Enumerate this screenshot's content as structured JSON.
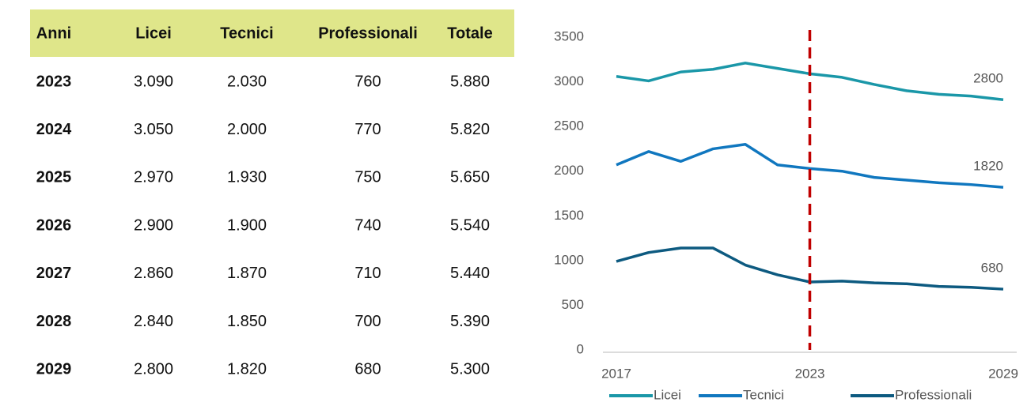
{
  "table": {
    "columns": [
      "Anni",
      "Licei",
      "Tecnici",
      "Professionali",
      "Totale"
    ],
    "rows": [
      [
        "2023",
        "3.090",
        "2.030",
        "760",
        "5.880"
      ],
      [
        "2024",
        "3.050",
        "2.000",
        "770",
        "5.820"
      ],
      [
        "2025",
        "2.970",
        "1.930",
        "750",
        "5.650"
      ],
      [
        "2026",
        "2.900",
        "1.900",
        "740",
        "5.540"
      ],
      [
        "2027",
        "2.860",
        "1.870",
        "710",
        "5.440"
      ],
      [
        "2028",
        "2.840",
        "1.850",
        "700",
        "5.390"
      ],
      [
        "2029",
        "2.800",
        "1.820",
        "680",
        "5.300"
      ]
    ]
  },
  "chart_data": {
    "type": "line",
    "x": [
      2017,
      2018,
      2019,
      2020,
      2021,
      2022,
      2023,
      2024,
      2025,
      2026,
      2027,
      2028,
      2029
    ],
    "series": [
      {
        "name": "Licei",
        "color": "#1a97a8",
        "values": [
          3060,
          3010,
          3110,
          3140,
          3210,
          3150,
          3090,
          3050,
          2970,
          2900,
          2860,
          2840,
          2800
        ]
      },
      {
        "name": "Tecnici",
        "color": "#1077bf",
        "values": [
          2070,
          2220,
          2110,
          2250,
          2300,
          2070,
          2030,
          2000,
          1930,
          1900,
          1870,
          1850,
          1820
        ]
      },
      {
        "name": "Professionali",
        "color": "#0d5a80",
        "values": [
          990,
          1090,
          1140,
          1140,
          950,
          840,
          760,
          770,
          750,
          740,
          710,
          700,
          680
        ]
      }
    ],
    "xlim": [
      2017,
      2029
    ],
    "xticks": [
      2017,
      2023,
      2029
    ],
    "ylim": [
      0,
      3500
    ],
    "yticks": [
      0,
      500,
      1000,
      1500,
      2000,
      2500,
      3000,
      3500
    ],
    "vline": 2023,
    "vline_color": "#c00000",
    "grid": false,
    "legend": "bottom"
  }
}
